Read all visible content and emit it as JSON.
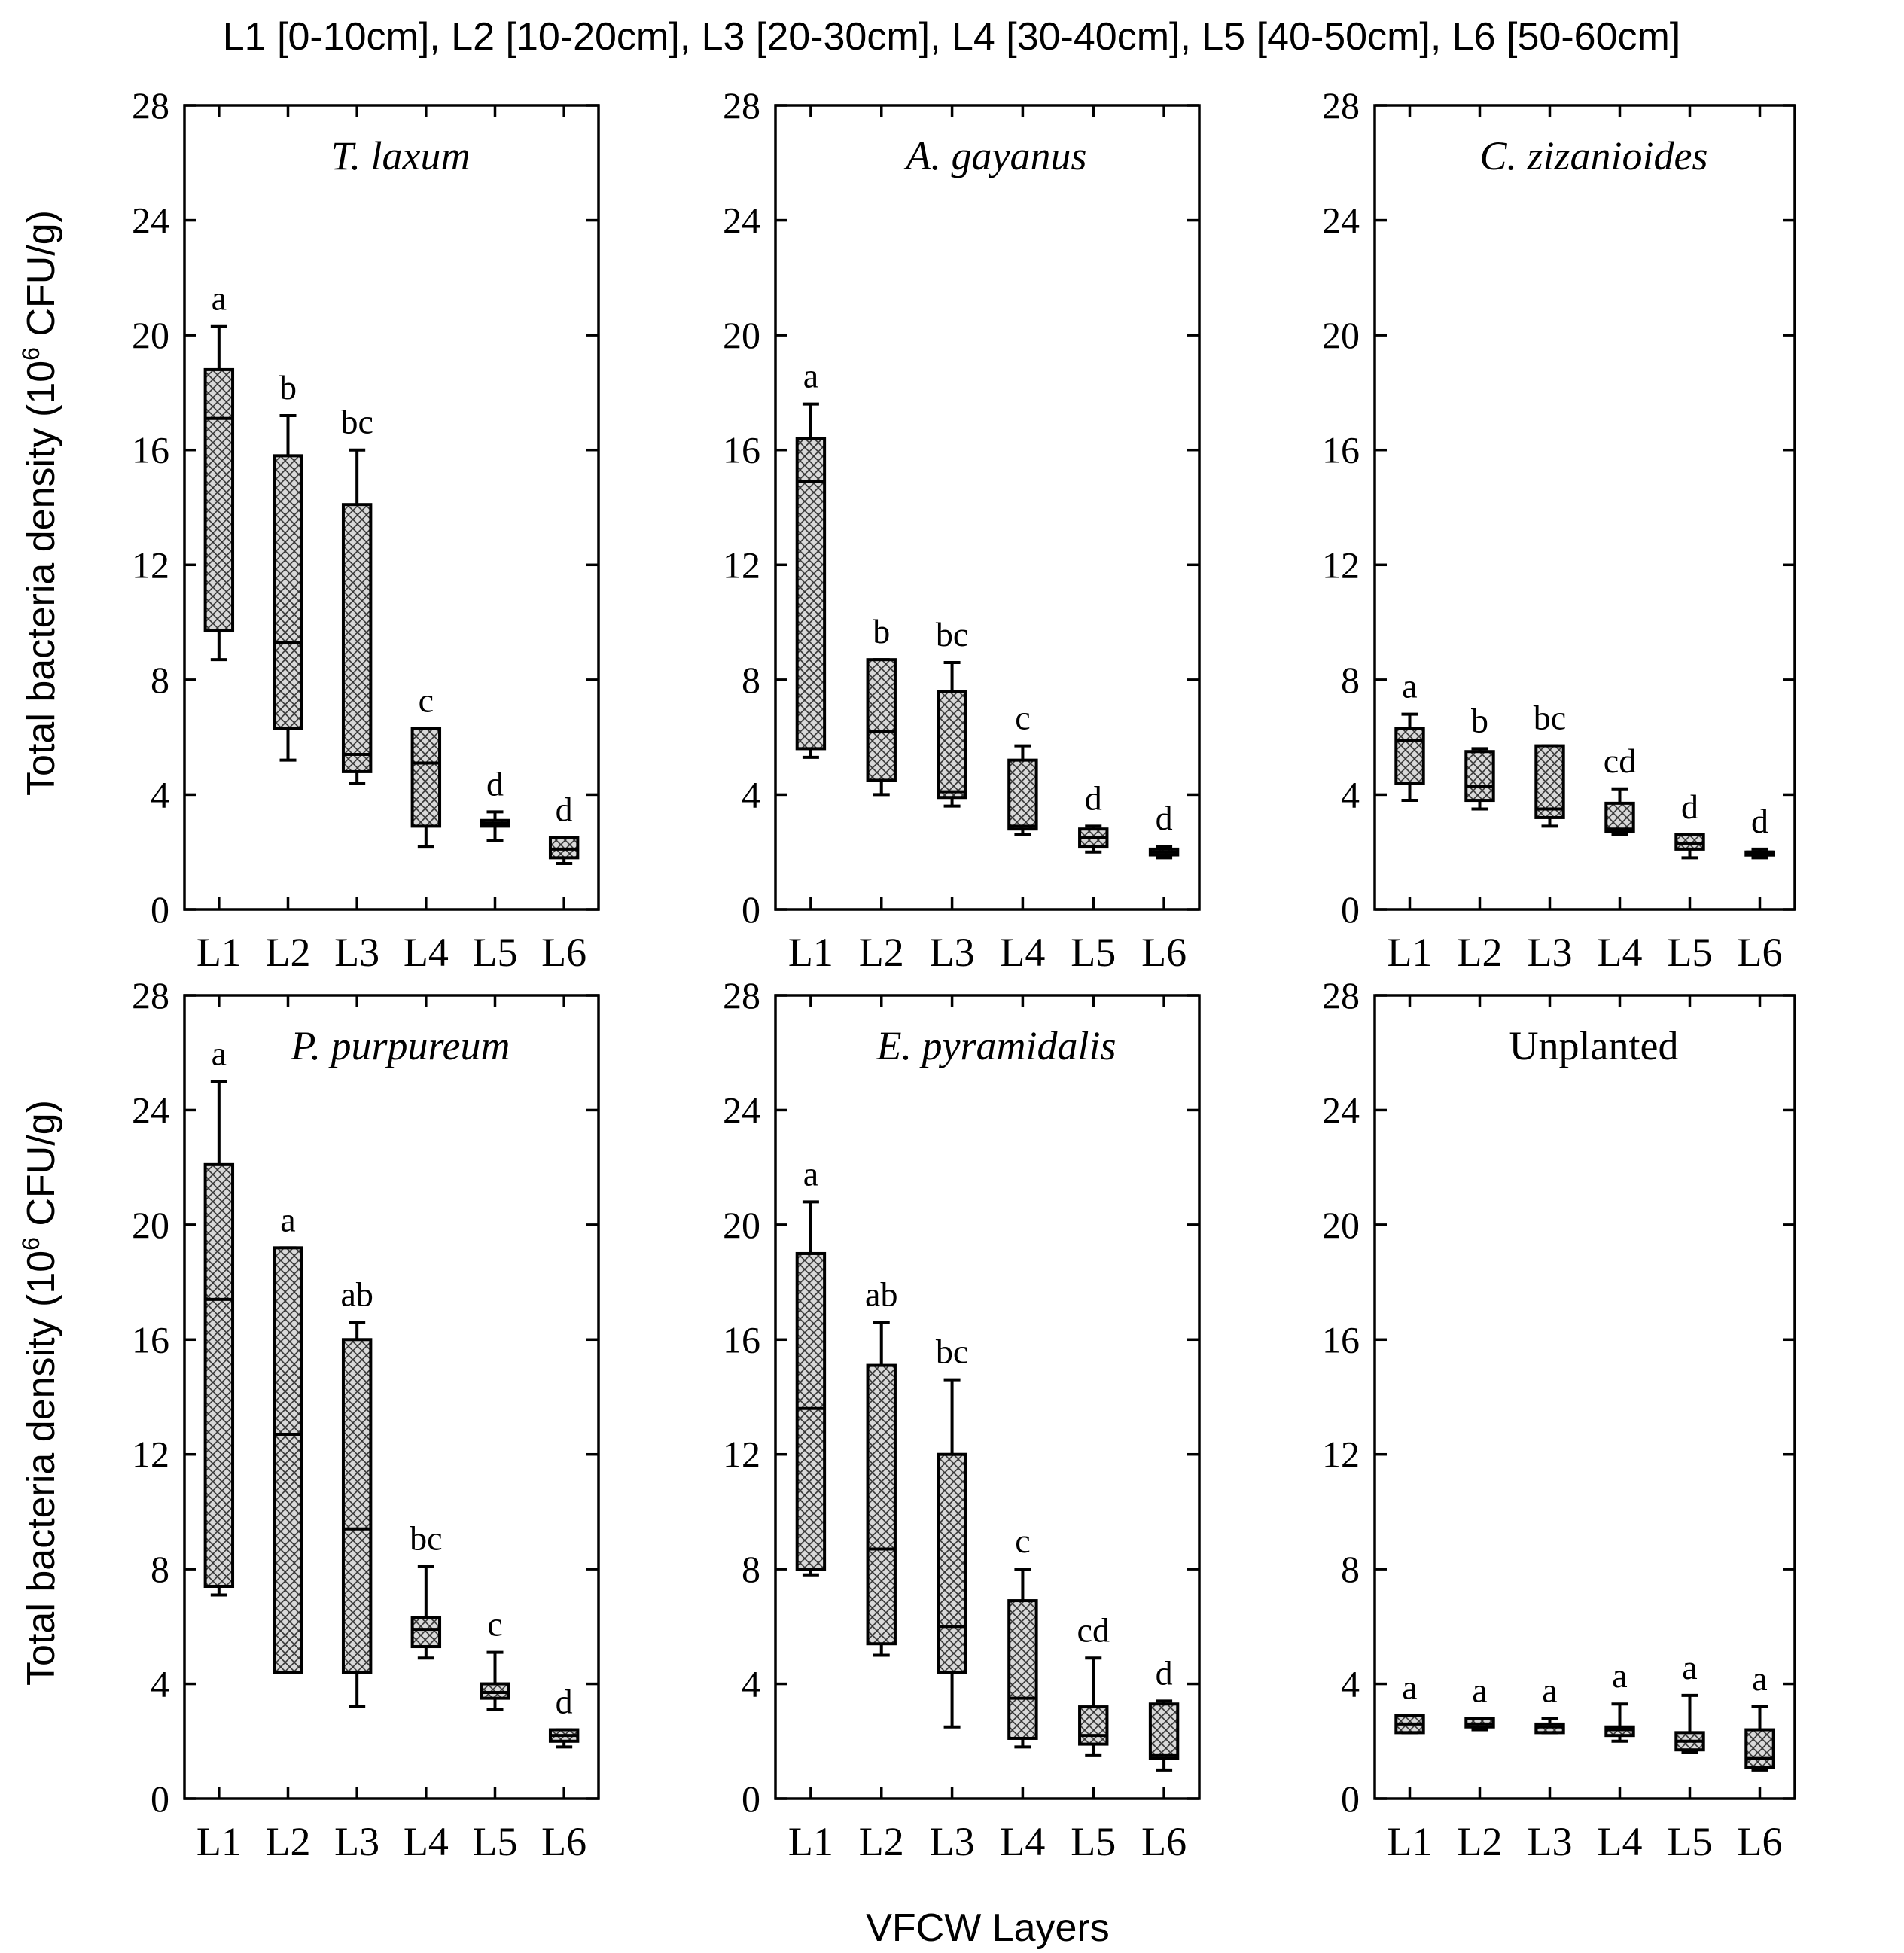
{
  "figure": {
    "layer_legend": "L1 [0-10cm], L2 [10-20cm], L3 [20-30cm], L4 [30-40cm], L5 [40-50cm], L6 [50-60cm]",
    "ylabel_prefix": "Total bacteria density (10",
    "ylabel_exp": "6",
    "ylabel_suffix": " CFU/g)",
    "xlabel": "VFCW Layers",
    "colors": {
      "axis": "#000000",
      "box_fill": "#d9d9d9",
      "hatch": "#333333"
    }
  },
  "chart_data": [
    {
      "type": "box",
      "title": "T. laxum",
      "title_italic": true,
      "categories": [
        "L1",
        "L2",
        "L3",
        "L4",
        "L5",
        "L6"
      ],
      "ylim": [
        0,
        28
      ],
      "yticks": [
        0,
        4,
        8,
        12,
        16,
        20,
        24,
        28
      ],
      "boxes": [
        {
          "min": 8.7,
          "q1": 9.7,
          "median": 17.1,
          "q3": 18.8,
          "max": 20.3,
          "sig": "a"
        },
        {
          "min": 5.2,
          "q1": 6.3,
          "median": 9.3,
          "q3": 15.8,
          "max": 17.2,
          "sig": "b"
        },
        {
          "min": 4.4,
          "q1": 4.8,
          "median": 5.4,
          "q3": 14.1,
          "max": 16.0,
          "sig": "bc"
        },
        {
          "min": 2.2,
          "q1": 2.9,
          "median": 5.1,
          "q3": 6.3,
          "max": 6.3,
          "sig": "c"
        },
        {
          "min": 2.4,
          "q1": 2.9,
          "median": 3.0,
          "q3": 3.1,
          "max": 3.4,
          "sig": "d"
        },
        {
          "min": 1.6,
          "q1": 1.8,
          "median": 2.1,
          "q3": 2.5,
          "max": 2.5,
          "sig": "d"
        }
      ]
    },
    {
      "type": "box",
      "title": "A. gayanus",
      "title_italic": true,
      "categories": [
        "L1",
        "L2",
        "L3",
        "L4",
        "L5",
        "L6"
      ],
      "ylim": [
        0,
        28
      ],
      "yticks": [
        0,
        4,
        8,
        12,
        16,
        20,
        24,
        28
      ],
      "boxes": [
        {
          "min": 5.3,
          "q1": 5.6,
          "median": 14.9,
          "q3": 16.4,
          "max": 17.6,
          "sig": "a"
        },
        {
          "min": 4.0,
          "q1": 4.5,
          "median": 6.2,
          "q3": 8.7,
          "max": 8.7,
          "sig": "b"
        },
        {
          "min": 3.6,
          "q1": 3.9,
          "median": 4.1,
          "q3": 7.6,
          "max": 8.6,
          "sig": "bc"
        },
        {
          "min": 2.6,
          "q1": 2.8,
          "median": 2.9,
          "q3": 5.2,
          "max": 5.7,
          "sig": "c"
        },
        {
          "min": 2.0,
          "q1": 2.2,
          "median": 2.5,
          "q3": 2.8,
          "max": 2.9,
          "sig": "d"
        },
        {
          "min": 1.8,
          "q1": 1.9,
          "median": 2.0,
          "q3": 2.1,
          "max": 2.2,
          "sig": "d"
        }
      ]
    },
    {
      "type": "box",
      "title": "C. zizanioides",
      "title_italic": true,
      "categories": [
        "L1",
        "L2",
        "L3",
        "L4",
        "L5",
        "L6"
      ],
      "ylim": [
        0,
        28
      ],
      "yticks": [
        0,
        4,
        8,
        12,
        16,
        20,
        24,
        28
      ],
      "boxes": [
        {
          "min": 3.8,
          "q1": 4.4,
          "median": 5.9,
          "q3": 6.3,
          "max": 6.8,
          "sig": "a"
        },
        {
          "min": 3.5,
          "q1": 3.8,
          "median": 4.3,
          "q3": 5.5,
          "max": 5.6,
          "sig": "b"
        },
        {
          "min": 2.9,
          "q1": 3.2,
          "median": 3.5,
          "q3": 5.7,
          "max": 5.7,
          "sig": "bc"
        },
        {
          "min": 2.6,
          "q1": 2.7,
          "median": 2.8,
          "q3": 3.7,
          "max": 4.2,
          "sig": "cd"
        },
        {
          "min": 1.8,
          "q1": 2.1,
          "median": 2.3,
          "q3": 2.6,
          "max": 2.6,
          "sig": "d"
        },
        {
          "min": 1.8,
          "q1": 1.9,
          "median": 2.0,
          "q3": 2.0,
          "max": 2.1,
          "sig": "d"
        }
      ]
    },
    {
      "type": "box",
      "title": "P. purpureum",
      "title_italic": true,
      "categories": [
        "L1",
        "L2",
        "L3",
        "L4",
        "L5",
        "L6"
      ],
      "ylim": [
        0,
        28
      ],
      "yticks": [
        0,
        4,
        8,
        12,
        16,
        20,
        24,
        28
      ],
      "boxes": [
        {
          "min": 7.1,
          "q1": 7.4,
          "median": 17.4,
          "q3": 22.1,
          "max": 25.0,
          "sig": "a"
        },
        {
          "min": 4.4,
          "q1": 4.4,
          "median": 12.7,
          "q3": 19.2,
          "max": 19.2,
          "sig": "a"
        },
        {
          "min": 3.2,
          "q1": 4.4,
          "median": 9.4,
          "q3": 16.0,
          "max": 16.6,
          "sig": "ab"
        },
        {
          "min": 4.9,
          "q1": 5.3,
          "median": 5.9,
          "q3": 6.3,
          "max": 8.1,
          "sig": "bc"
        },
        {
          "min": 3.1,
          "q1": 3.5,
          "median": 3.7,
          "q3": 4.0,
          "max": 5.1,
          "sig": "c"
        },
        {
          "min": 1.8,
          "q1": 2.0,
          "median": 2.2,
          "q3": 2.4,
          "max": 2.4,
          "sig": "d"
        }
      ]
    },
    {
      "type": "box",
      "title": "E. pyramidalis",
      "title_italic": true,
      "categories": [
        "L1",
        "L2",
        "L3",
        "L4",
        "L5",
        "L6"
      ],
      "ylim": [
        0,
        28
      ],
      "yticks": [
        0,
        4,
        8,
        12,
        16,
        20,
        24,
        28
      ],
      "boxes": [
        {
          "min": 7.8,
          "q1": 8.0,
          "median": 13.6,
          "q3": 19.0,
          "max": 20.8,
          "sig": "a"
        },
        {
          "min": 5.0,
          "q1": 5.4,
          "median": 8.7,
          "q3": 15.1,
          "max": 16.6,
          "sig": "ab"
        },
        {
          "min": 2.5,
          "q1": 4.4,
          "median": 6.0,
          "q3": 12.0,
          "max": 14.6,
          "sig": "bc"
        },
        {
          "min": 1.8,
          "q1": 2.1,
          "median": 3.5,
          "q3": 6.9,
          "max": 8.0,
          "sig": "c"
        },
        {
          "min": 1.5,
          "q1": 1.9,
          "median": 2.2,
          "q3": 3.2,
          "max": 4.9,
          "sig": "cd"
        },
        {
          "min": 1.0,
          "q1": 1.4,
          "median": 1.5,
          "q3": 3.3,
          "max": 3.4,
          "sig": "d"
        }
      ]
    },
    {
      "type": "box",
      "title": "Unplanted",
      "title_italic": false,
      "categories": [
        "L1",
        "L2",
        "L3",
        "L4",
        "L5",
        "L6"
      ],
      "ylim": [
        0,
        28
      ],
      "yticks": [
        0,
        4,
        8,
        12,
        16,
        20,
        24,
        28
      ],
      "boxes": [
        {
          "min": 2.3,
          "q1": 2.3,
          "median": 2.6,
          "q3": 2.9,
          "max": 2.9,
          "sig": "a"
        },
        {
          "min": 2.4,
          "q1": 2.5,
          "median": 2.6,
          "q3": 2.8,
          "max": 2.8,
          "sig": "a"
        },
        {
          "min": 2.3,
          "q1": 2.3,
          "median": 2.5,
          "q3": 2.6,
          "max": 2.8,
          "sig": "a"
        },
        {
          "min": 2.0,
          "q1": 2.2,
          "median": 2.4,
          "q3": 2.5,
          "max": 3.3,
          "sig": "a"
        },
        {
          "min": 1.6,
          "q1": 1.7,
          "median": 2.0,
          "q3": 2.3,
          "max": 3.6,
          "sig": "a"
        },
        {
          "min": 1.0,
          "q1": 1.1,
          "median": 1.4,
          "q3": 2.4,
          "max": 3.2,
          "sig": "a"
        }
      ]
    }
  ]
}
